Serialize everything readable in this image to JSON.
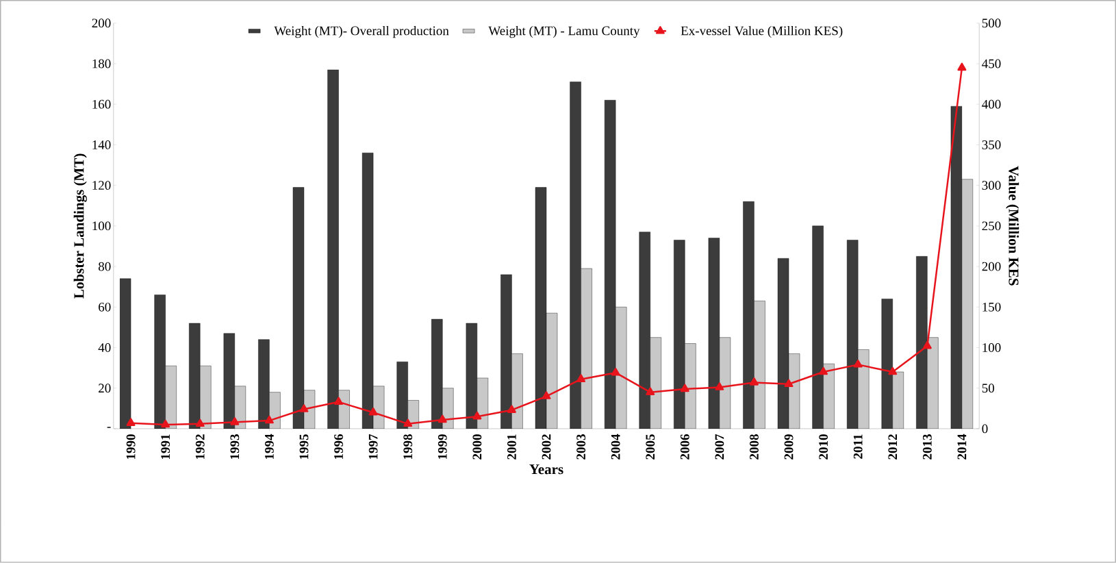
{
  "chart_data": {
    "type": "bar",
    "xlabel": "Years",
    "ylabel": "Lobster Landings (MT)",
    "y2label": "Value (Million KES",
    "categories": [
      "1990",
      "1991",
      "1992",
      "1993",
      "1994",
      "1995",
      "1996",
      "1997",
      "1998",
      "1999",
      "2000",
      "2001",
      "2002",
      "2003",
      "2004",
      "2005",
      "2006",
      "2007",
      "2008",
      "2009",
      "2010",
      "2011",
      "2012",
      "2013",
      "2014"
    ],
    "series": [
      {
        "name": "Weight (MT)- Overall production",
        "color": "#3c3c3c",
        "values": [
          74,
          66,
          52,
          47,
          44,
          119,
          177,
          136,
          33,
          54,
          52,
          76,
          119,
          171,
          162,
          97,
          93,
          94,
          112,
          84,
          100,
          93,
          64,
          85,
          159
        ]
      },
      {
        "name": "Weight (MT) - Lamu County",
        "color": "#c8c8c8",
        "values": [
          null,
          31,
          31,
          21,
          18,
          19,
          19,
          21,
          14,
          20,
          25,
          37,
          57,
          79,
          60,
          45,
          42,
          45,
          63,
          37,
          32,
          39,
          28,
          45,
          123
        ]
      },
      {
        "name": "Ex-vessel Value (Million KES)",
        "type": "line",
        "axis": "y2",
        "color": "#e8141c",
        "marker": "triangle",
        "line_style": "solid",
        "values": [
          7,
          5,
          6,
          8,
          10,
          24,
          33,
          20,
          6,
          11,
          15,
          23,
          40,
          61,
          69,
          45,
          49,
          51,
          57,
          55,
          70,
          79,
          70,
          102,
          445
        ]
      }
    ],
    "ylim": [
      0,
      200
    ],
    "yticks": [
      {
        "value": 0,
        "label": "-"
      },
      20,
      40,
      60,
      80,
      100,
      120,
      140,
      160,
      180,
      200
    ],
    "y2lim": [
      0,
      500
    ],
    "y2ticks": [
      0,
      50,
      100,
      150,
      200,
      250,
      300,
      350,
      400,
      450,
      500
    ],
    "legend": "top",
    "grid": false
  }
}
